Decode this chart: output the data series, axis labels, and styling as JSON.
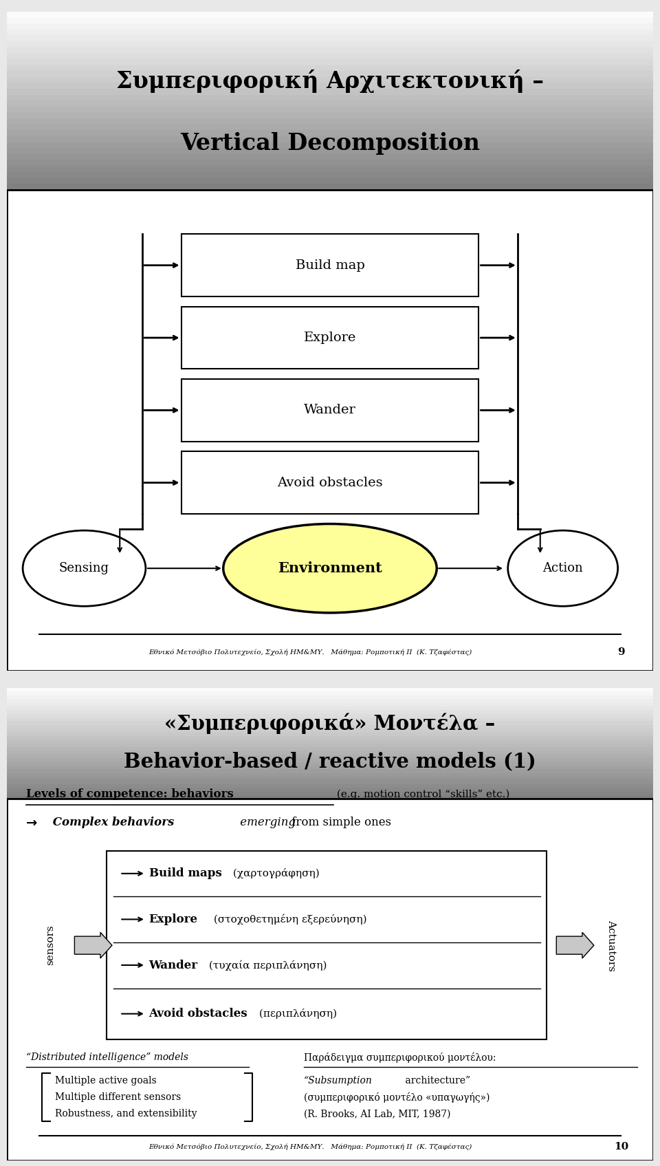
{
  "slide1": {
    "title_line1": "Συμπεριφορική Αρχιτεκτονική –",
    "title_line2": "Vertical Decomposition",
    "boxes": [
      "Build map",
      "Explore",
      "Wander",
      "Avoid obstacles"
    ],
    "sensing_label": "Sensing",
    "action_label": "Action",
    "environment_label": "Environment",
    "footer": "Εθνικό Μετσόβιο Πολυτεχνείο, Σχολή ΗΜ&ΜΥ.   Μάθημα: Ρομποτική ΙΙ  (Κ. Τζαφέστας)",
    "page_num": "9"
  },
  "slide2": {
    "title_line1": "«Συμπεριφορικά» Μοντέλα –",
    "title_line2": "Behavior-based / reactive models (1)",
    "levels_text1": "Levels of competence: behaviors",
    "levels_text2": " (e.g. motion control “skills” etc.)",
    "behavior_items": [
      {
        "bold": "Build maps",
        "rest": " (χαρτογράφηση)"
      },
      {
        "bold": "Explore",
        "rest": " (στοχοθετημένη εξερεύνηση)"
      },
      {
        "bold": "Wander",
        "rest": " (τυχαία περιπλάνηση)"
      },
      {
        "bold": "Avoid obstacles",
        "rest": " (περιπλάνηση)"
      }
    ],
    "sensors_label": "sensors",
    "actuators_label": "Actuators",
    "dist_intel_title": "“Distributed intelligence” models",
    "dist_intel_items": [
      "Multiple active goals",
      "Multiple different sensors",
      "Robustness, and extensibility"
    ],
    "right_title": "Παράδειγμα συμπεριφορικού μοντέλου:",
    "right_item0_italic": "“Subsumption",
    "right_item0_normal": " architecture”",
    "right_item1": "(συμπεριφορικό μοντέλο «υπαγωγής»)",
    "right_item2": "(R. Brooks, AI Lab, MIT, 1987)",
    "footer": "Εθνικό Μετσόβιο Πολυτεχνείο, Σχολή ΗΜ&ΜΥ.   Μάθημα: Ρομποτική ΙΙ  (Κ. Τζαφέστας)",
    "page_num": "10"
  }
}
